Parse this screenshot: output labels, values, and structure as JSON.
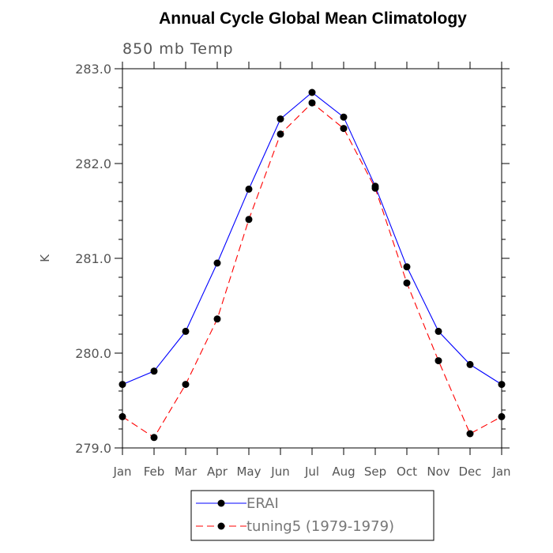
{
  "chart_data": {
    "type": "line",
    "title": "Annual Cycle Global Mean Climatology",
    "subtitle": "850 mb Temp",
    "xlabel": "",
    "ylabel": "K",
    "categories": [
      "Jan",
      "Feb",
      "Mar",
      "Apr",
      "May",
      "Jun",
      "Jul",
      "Aug",
      "Sep",
      "Oct",
      "Nov",
      "Dec",
      "Jan"
    ],
    "ylim": [
      279.0,
      283.0
    ],
    "yticks": [
      "279.0",
      "280.0",
      "281.0",
      "282.0",
      "283.0"
    ],
    "grid": false,
    "legend_position": "bottom",
    "series": [
      {
        "name": "ERAI",
        "color": "#0000ff",
        "line_style": "solid",
        "marker": "filled-circle",
        "values": [
          279.67,
          279.81,
          280.23,
          280.95,
          281.73,
          282.47,
          282.75,
          282.49,
          281.76,
          280.91,
          280.23,
          279.88,
          279.67
        ]
      },
      {
        "name": "tuning5 (1979-1979)",
        "color": "#ff0000",
        "line_style": "dashed",
        "marker": "filled-circle",
        "values": [
          279.33,
          279.11,
          279.67,
          280.36,
          281.41,
          282.31,
          282.64,
          282.37,
          281.74,
          280.74,
          279.92,
          279.15,
          279.33
        ]
      }
    ]
  }
}
